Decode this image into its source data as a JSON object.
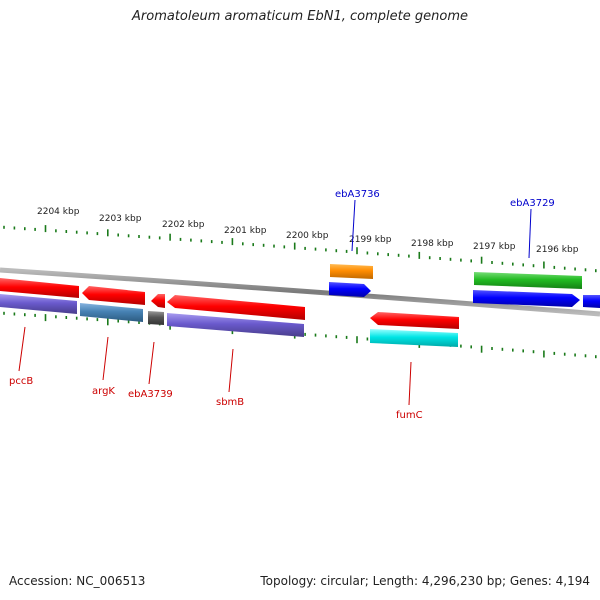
{
  "title": "Aromatoleum aromaticum EbN1, complete genome",
  "footer": {
    "accession": "Accession: NC_006513",
    "summary": "Topology: circular; Length: 4,296,230 bp; Genes: 4,194"
  },
  "ticks": [
    "2204 kbp",
    "2203 kbp",
    "2202 kbp",
    "2201 kbp",
    "2200 kbp",
    "2199 kbp",
    "2198 kbp",
    "2197 kbp",
    "2196 kbp"
  ],
  "genes": [
    {
      "name": "pccB",
      "color": "#cc0000"
    },
    {
      "name": "argK",
      "color": "#cc0000"
    },
    {
      "name": "ebA3739",
      "color": "#cc0000"
    },
    {
      "name": "sbmB",
      "color": "#cc0000"
    },
    {
      "name": "fumC",
      "color": "#cc0000"
    },
    {
      "name": "ebA3736",
      "color": "#0000cc"
    },
    {
      "name": "ebA3729",
      "color": "#0000cc"
    }
  ],
  "colors": {
    "backbone": "#888888",
    "tick": "#1a7a1a",
    "red": "#ff0000",
    "blue": "#0000ff",
    "orange": "#ff8c00",
    "green": "#22bb22",
    "cyan": "#00e5e5",
    "purple": "#6a5acd",
    "steelblue": "#4682b4",
    "gray": "#555555"
  }
}
